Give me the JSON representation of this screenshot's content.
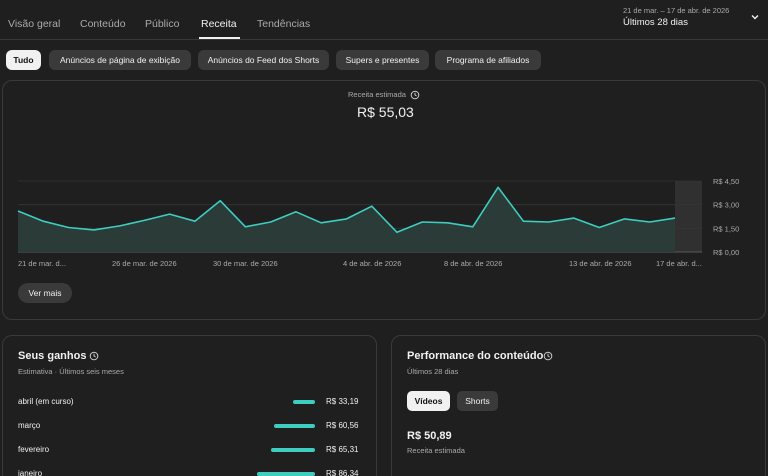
{
  "nav": {
    "tabs": [
      "Visão geral",
      "Conteúdo",
      "Público",
      "Receita",
      "Tendências"
    ],
    "active_tab": "Receita",
    "date_range": "21 de mar. – 17 de abr. de 2026",
    "date_label": "Últimos 28 dias"
  },
  "filters": {
    "chips": [
      "Tudo",
      "Anúncios de página de exibição",
      "Anúncios do Feed dos Shorts",
      "Supers e presentes",
      "Programa de afiliados"
    ],
    "selected": "Tudo"
  },
  "revenue": {
    "label": "Receita estimada",
    "value": "R$ 55,03",
    "see_more": "Ver mais"
  },
  "chart_data": {
    "type": "area",
    "x_tick_labels": [
      "21 de mar. d...",
      "26 de mar. de 2026",
      "30 de mar. de 2026",
      "4 de abr. de 2026",
      "8 de abr. de 2026",
      "13 de abr. de 2026",
      "17 de abr. d..."
    ],
    "y_tick_labels": [
      "R$ 0,00",
      "R$ 1,50",
      "R$ 3,00",
      "R$ 4,50"
    ],
    "ylim": [
      0,
      4.5
    ],
    "values": [
      2.6,
      1.95,
      1.55,
      1.4,
      1.65,
      2.0,
      2.4,
      1.95,
      3.25,
      1.6,
      1.9,
      2.55,
      1.85,
      2.1,
      2.9,
      1.25,
      1.9,
      1.85,
      1.6,
      4.1,
      1.95,
      1.9,
      2.15,
      1.55,
      2.1,
      1.9,
      2.15
    ],
    "grid": true,
    "line_color": "#3ecdc0",
    "fill_color": "#2a3b38",
    "highlight_color": "#303030"
  },
  "earnings": {
    "title": "Seus ganhos",
    "subtitle": "Estimativa · Últimos seis meses",
    "rows": [
      {
        "month": "abril (em curso)",
        "value": "R$ 33,19",
        "amount": 33.19
      },
      {
        "month": "março",
        "value": "R$ 60,56",
        "amount": 60.56
      },
      {
        "month": "fevereiro",
        "value": "R$ 65,31",
        "amount": 65.31
      },
      {
        "month": "janeiro",
        "value": "R$ 86,34",
        "amount": 86.34
      }
    ],
    "bar_color": "#3ecdc0"
  },
  "performance": {
    "title": "Performance do conteúdo",
    "subtitle": "Últimos 28 dias",
    "segments": [
      "Vídeos",
      "Shorts"
    ],
    "selected_segment": "Vídeos",
    "value": "R$ 50,89",
    "value_label": "Receita estimada"
  }
}
